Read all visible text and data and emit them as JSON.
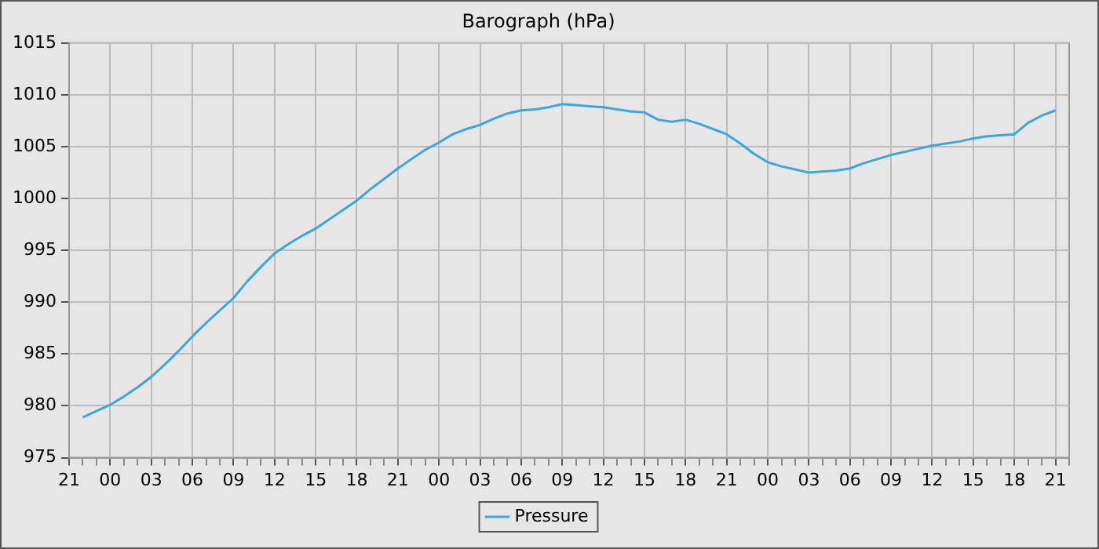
{
  "chart_data": {
    "type": "line",
    "title": "Barograph (hPa)",
    "categories": [
      "21",
      null,
      null,
      "00",
      null,
      null,
      "03",
      null,
      null,
      "06",
      null,
      null,
      "09",
      null,
      null,
      "12",
      null,
      null,
      "15",
      null,
      null,
      "18",
      null,
      null,
      "21",
      null,
      null,
      "00",
      null,
      null,
      "03",
      null,
      null,
      "06",
      null,
      null,
      "09",
      null,
      null,
      "12",
      null,
      null,
      "15",
      null,
      null,
      "18",
      null,
      null,
      "21",
      null,
      null,
      "00",
      null,
      null,
      "03",
      null,
      null,
      "06",
      null,
      null,
      "09",
      null,
      null,
      "12",
      null,
      null,
      "15",
      null,
      null,
      "18",
      null,
      null,
      "21",
      null
    ],
    "series": [
      {
        "name": "Pressure",
        "color": "#3ea6d8",
        "values": [
          null,
          978.9,
          979.5,
          980.1,
          980.9,
          981.8,
          982.8,
          984.0,
          985.3,
          986.7,
          988.0,
          989.2,
          990.4,
          992.0,
          993.4,
          994.7,
          995.6,
          996.4,
          997.1,
          998.0,
          998.9,
          999.8,
          1000.9,
          1001.9,
          1002.9,
          1003.8,
          1004.7,
          1005.4,
          1006.2,
          1006.7,
          1007.1,
          1007.7,
          1008.2,
          1008.5,
          1008.6,
          1008.8,
          1009.1,
          1009.0,
          1008.9,
          1008.8,
          1008.6,
          1008.4,
          1008.3,
          1007.6,
          1007.4,
          1007.6,
          1007.2,
          1006.7,
          1006.2,
          1005.3,
          1004.3,
          1003.5,
          1003.1,
          1002.8,
          1002.5,
          1002.6,
          1002.7,
          1002.9,
          1003.4,
          1003.8,
          1004.2,
          1004.5,
          1004.8,
          1005.1,
          1005.3,
          1005.5,
          1005.8,
          1006.0,
          1006.1,
          1006.2,
          1007.3,
          1008.0,
          1008.5,
          null
        ]
      }
    ],
    "ylim": [
      975,
      1015
    ],
    "yticks": [
      975,
      980,
      985,
      990,
      995,
      1000,
      1005,
      1010,
      1015
    ],
    "grid": true,
    "legend": "bottom",
    "marker": "none",
    "line_style": "solid"
  }
}
